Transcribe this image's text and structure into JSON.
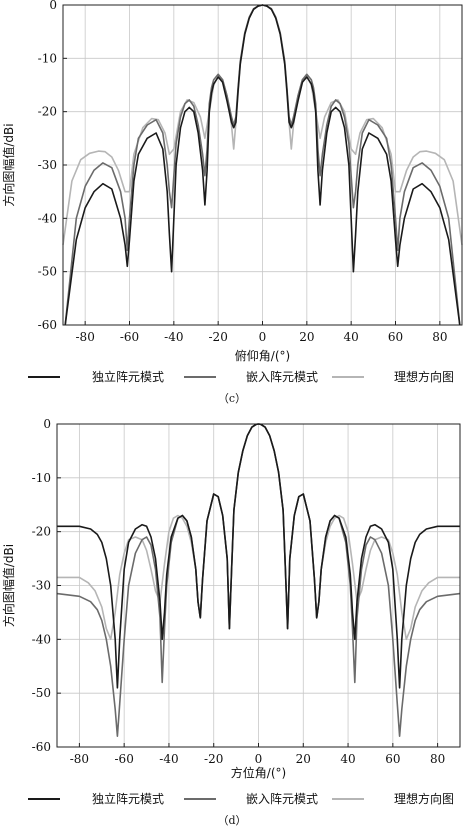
{
  "chart_data": [
    {
      "type": "line",
      "caption": "（c）",
      "xlabel": "俯仰角/(°)",
      "ylabel": "方向图幅值/dBi",
      "xlim": [
        -90,
        90
      ],
      "ylim": [
        -60,
        0
      ],
      "x_ticks": [
        -80,
        -60,
        -40,
        -20,
        0,
        20,
        40,
        60,
        80
      ],
      "y_ticks": [
        0,
        -10,
        -20,
        -30,
        -40,
        -50,
        -60
      ],
      "grid": true,
      "legend_position": "bottom",
      "colors": [
        "#1a1a1a",
        "#6b6b6b",
        "#b5b5b5"
      ],
      "series": [
        {
          "name": "独立阵元模式",
          "x": [
            -89,
            -84,
            -80,
            -76,
            -72,
            -68,
            -64,
            -62,
            -61,
            -60,
            -58,
            -56,
            -52,
            -48,
            -45,
            -43,
            -42,
            -41,
            -39,
            -37,
            -35,
            -33,
            -31,
            -29,
            -27,
            -26,
            -25,
            -24,
            -23,
            -22,
            -20,
            -18,
            -16,
            -14,
            -13,
            -12,
            -11,
            -10,
            -8,
            -6,
            -4,
            -2,
            0,
            2,
            4,
            6,
            8,
            10,
            11,
            12,
            13,
            14,
            16,
            18,
            20,
            22,
            23,
            24,
            25,
            26,
            27,
            29,
            31,
            33,
            35,
            37,
            39,
            41,
            42,
            43,
            45,
            48,
            52,
            56,
            58,
            60,
            61,
            62,
            64,
            68,
            72,
            76,
            80,
            84,
            89
          ],
          "y": [
            -60,
            -44,
            -38,
            -35,
            -33.5,
            -34.5,
            -40,
            -45,
            -49,
            -44,
            -33,
            -28,
            -25,
            -24,
            -27,
            -35,
            -43,
            -50,
            -30,
            -23,
            -20,
            -19.2,
            -20,
            -24,
            -31,
            -37.5,
            -31,
            -20,
            -16.5,
            -14.8,
            -13.5,
            -14.5,
            -18,
            -22,
            -23,
            -22,
            -16,
            -11,
            -5.5,
            -2.5,
            -0.8,
            -0.2,
            0,
            -0.2,
            -0.8,
            -2.5,
            -5.5,
            -11,
            -16,
            -22,
            -23,
            -22,
            -18,
            -14.5,
            -13.5,
            -14.8,
            -16.5,
            -20,
            -31,
            -37.5,
            -31,
            -24,
            -20,
            -19.2,
            -20,
            -23,
            -30,
            -50,
            -43,
            -35,
            -27,
            -24,
            -25,
            -28,
            -33,
            -44,
            -49,
            -45,
            -40,
            -34.5,
            -33.5,
            -35,
            -38,
            -44,
            -60
          ]
        },
        {
          "name": "嵌入阵元模式",
          "x": [
            -89,
            -84,
            -80,
            -76,
            -72,
            -68,
            -64,
            -62,
            -61,
            -60,
            -58,
            -56,
            -52,
            -48,
            -45,
            -43,
            -42,
            -41,
            -39,
            -37,
            -35,
            -33,
            -31,
            -29,
            -27,
            -26,
            -25,
            -24,
            -23,
            -22,
            -20,
            -18,
            -16,
            -14,
            -13,
            -12,
            -11,
            -10,
            -8,
            -6,
            -4,
            -2,
            0,
            2,
            4,
            6,
            8,
            10,
            11,
            12,
            13,
            14,
            16,
            18,
            20,
            22,
            23,
            24,
            25,
            26,
            27,
            29,
            31,
            33,
            35,
            37,
            39,
            41,
            42,
            43,
            45,
            48,
            52,
            56,
            58,
            60,
            61,
            62,
            64,
            68,
            72,
            76,
            80,
            84,
            89
          ],
          "y": [
            -60,
            -40,
            -34,
            -31,
            -29.6,
            -30.5,
            -35,
            -40,
            -46,
            -40,
            -30,
            -25,
            -22.5,
            -21.5,
            -24,
            -30,
            -35,
            -38,
            -26,
            -21,
            -18.5,
            -17.8,
            -19,
            -22.5,
            -28,
            -32,
            -27,
            -18.5,
            -15.5,
            -14,
            -13,
            -14,
            -17,
            -21,
            -22.5,
            -21,
            -15.5,
            -10.5,
            -5.2,
            -2.3,
            -0.7,
            -0.2,
            0,
            -0.2,
            -0.7,
            -2.3,
            -5.2,
            -10.5,
            -15.5,
            -21,
            -22.5,
            -21,
            -17,
            -14,
            -13,
            -14,
            -15.5,
            -18.5,
            -27,
            -32,
            -28,
            -22.5,
            -19,
            -17.8,
            -18.5,
            -21,
            -26,
            -38,
            -35,
            -30,
            -24,
            -21.5,
            -22.5,
            -25,
            -30,
            -40,
            -46,
            -40,
            -35,
            -30.5,
            -29.6,
            -31,
            -34,
            -40,
            -60
          ]
        },
        {
          "name": "理想方向图",
          "x": [
            -90,
            -86,
            -82,
            -78,
            -74,
            -71,
            -68,
            -65,
            -62,
            -60,
            -58,
            -54,
            -50,
            -47,
            -44,
            -42,
            -40,
            -37,
            -34,
            -31,
            -28,
            -26,
            -24,
            -22,
            -20,
            -18,
            -16,
            -14,
            -13,
            -12,
            -10,
            -8,
            -6,
            -4,
            -2,
            0,
            2,
            4,
            6,
            8,
            10,
            12,
            13,
            14,
            16,
            18,
            20,
            22,
            24,
            26,
            28,
            31,
            34,
            37,
            40,
            42,
            44,
            47,
            50,
            54,
            58,
            60,
            62,
            65,
            68,
            71,
            74,
            78,
            82,
            86,
            90
          ],
          "y": [
            -45,
            -33,
            -29,
            -27.8,
            -27.4,
            -27.5,
            -28.5,
            -31,
            -35,
            -35,
            -28,
            -23,
            -21.3,
            -21.5,
            -24,
            -28,
            -27,
            -20,
            -17.8,
            -18.3,
            -21,
            -25,
            -20,
            -15,
            -13.3,
            -14,
            -17,
            -22.5,
            -27,
            -22,
            -11,
            -5.3,
            -2.4,
            -0.8,
            -0.2,
            0,
            -0.2,
            -0.8,
            -2.4,
            -5.3,
            -11,
            -22,
            -27,
            -22.5,
            -17,
            -14,
            -13.3,
            -15,
            -20,
            -25,
            -21,
            -18.3,
            -17.8,
            -20,
            -27,
            -28,
            -24,
            -21.5,
            -21.3,
            -23,
            -28,
            -35,
            -35,
            -31,
            -28.5,
            -27.5,
            -27.4,
            -27.8,
            -29,
            -33,
            -45
          ]
        }
      ]
    },
    {
      "type": "line",
      "caption": "（d）",
      "xlabel": "方位角/(°)",
      "ylabel": "方向图幅值/dBi",
      "xlim": [
        -90,
        90
      ],
      "ylim": [
        -60,
        0
      ],
      "x_ticks": [
        -80,
        -60,
        -40,
        -20,
        0,
        20,
        40,
        60,
        80
      ],
      "y_ticks": [
        0,
        -10,
        -20,
        -30,
        -40,
        -50,
        -60
      ],
      "grid": true,
      "legend_position": "bottom",
      "colors": [
        "#1a1a1a",
        "#6b6b6b",
        "#b5b5b5"
      ],
      "series": [
        {
          "name": "独立阵元模式",
          "x": [
            -90,
            -80,
            -75,
            -72,
            -70,
            -68,
            -66,
            -64,
            -63,
            -62,
            -60,
            -58,
            -55,
            -52,
            -50,
            -48,
            -46,
            -44,
            -43,
            -42,
            -41,
            -39,
            -36,
            -34,
            -32,
            -30,
            -28,
            -27,
            -26,
            -25,
            -23,
            -20,
            -18,
            -16,
            -14,
            -13,
            -12,
            -11,
            -9,
            -7,
            -5,
            -3,
            -1,
            0,
            1,
            3,
            5,
            7,
            9,
            11,
            12,
            13,
            14,
            16,
            18,
            20,
            23,
            25,
            26,
            27,
            28,
            30,
            32,
            34,
            36,
            39,
            41,
            42,
            43,
            44,
            46,
            48,
            50,
            52,
            55,
            58,
            60,
            62,
            63,
            64,
            66,
            68,
            70,
            72,
            75,
            80,
            90
          ],
          "y": [
            -19,
            -19,
            -19.5,
            -20.5,
            -22,
            -25,
            -30,
            -40,
            -49,
            -40,
            -27,
            -22,
            -19.5,
            -18.7,
            -19,
            -21,
            -25,
            -33,
            -40,
            -35,
            -28,
            -21,
            -17.5,
            -17,
            -18,
            -21,
            -27,
            -33,
            -36,
            -29,
            -18,
            -13,
            -13.5,
            -17,
            -25,
            -38,
            -27,
            -16,
            -9,
            -5,
            -2.2,
            -0.6,
            -0.05,
            0,
            -0.05,
            -0.6,
            -2.2,
            -5,
            -9,
            -16,
            -27,
            -38,
            -25,
            -17,
            -13.5,
            -13,
            -18,
            -29,
            -36,
            -33,
            -27,
            -21,
            -18,
            -17,
            -17.5,
            -21,
            -28,
            -35,
            -40,
            -33,
            -25,
            -21,
            -19,
            -18.7,
            -19.5,
            -22,
            -27,
            -40,
            -49,
            -40,
            -30,
            -25,
            -22,
            -20.5,
            -19.5,
            -19,
            -19
          ]
        },
        {
          "name": "嵌入阵元模式",
          "x": [
            -90,
            -80,
            -75,
            -72,
            -70,
            -68,
            -66,
            -64,
            -63,
            -62,
            -60,
            -58,
            -55,
            -52,
            -50,
            -48,
            -46,
            -44,
            -43,
            -42,
            -41,
            -39,
            -36,
            -34,
            -32,
            -30,
            -28,
            -27,
            -26,
            -25,
            -23,
            -20,
            -18,
            -16,
            -14,
            -13,
            -12,
            -11,
            -9,
            -7,
            -5,
            -3,
            -1,
            0,
            1,
            3,
            5,
            7,
            9,
            11,
            12,
            13,
            14,
            16,
            18,
            20,
            23,
            25,
            26,
            27,
            28,
            30,
            32,
            34,
            36,
            39,
            41,
            42,
            43,
            44,
            46,
            48,
            50,
            52,
            55,
            58,
            60,
            62,
            63,
            64,
            66,
            68,
            70,
            72,
            75,
            80,
            90
          ],
          "y": [
            -31.5,
            -32,
            -33,
            -34.5,
            -36.5,
            -40,
            -45,
            -53,
            -58,
            -52,
            -40,
            -30,
            -24,
            -21.5,
            -21,
            -22.5,
            -27,
            -36,
            -48,
            -38,
            -30,
            -22,
            -17.5,
            -17,
            -18,
            -21,
            -27,
            -33,
            -36,
            -29,
            -18,
            -13,
            -13.5,
            -17,
            -25,
            -38,
            -27,
            -16,
            -9,
            -5,
            -2.2,
            -0.6,
            -0.05,
            0,
            -0.05,
            -0.6,
            -2.2,
            -5,
            -9,
            -16,
            -27,
            -38,
            -25,
            -17,
            -13.5,
            -13,
            -18,
            -29,
            -36,
            -33,
            -27,
            -21,
            -18,
            -17,
            -17.5,
            -22,
            -30,
            -38,
            -48,
            -36,
            -27,
            -22.5,
            -21,
            -21.5,
            -24,
            -30,
            -40,
            -52,
            -58,
            -53,
            -45,
            -40,
            -36.5,
            -34.5,
            -33,
            -32,
            -31.5
          ]
        },
        {
          "name": "理想方向图",
          "x": [
            -90,
            -80,
            -76,
            -73,
            -70,
            -68,
            -66,
            -64,
            -62,
            -60,
            -58,
            -55,
            -52,
            -50,
            -48,
            -46,
            -44,
            -42,
            -40,
            -38,
            -36,
            -34,
            -32,
            -30,
            -28,
            -27,
            -26,
            -25,
            -23,
            -20,
            -18,
            -16,
            -14,
            -13,
            -12,
            -11,
            -9,
            -7,
            -5,
            -3,
            -1,
            0,
            1,
            3,
            5,
            7,
            9,
            11,
            12,
            13,
            14,
            16,
            18,
            20,
            23,
            25,
            26,
            27,
            28,
            30,
            32,
            34,
            36,
            38,
            40,
            42,
            44,
            46,
            48,
            50,
            52,
            55,
            58,
            60,
            62,
            64,
            66,
            68,
            70,
            73,
            76,
            80,
            90
          ],
          "y": [
            -28.5,
            -28.5,
            -29.5,
            -31,
            -34,
            -38,
            -40,
            -35,
            -28,
            -24,
            -21.5,
            -21,
            -21.5,
            -23.5,
            -27,
            -31,
            -33,
            -26,
            -20,
            -17.5,
            -17,
            -17.5,
            -19,
            -22,
            -27,
            -33,
            -36,
            -29,
            -18,
            -13,
            -13.5,
            -17,
            -25,
            -38,
            -27,
            -16,
            -9,
            -5,
            -2.2,
            -0.6,
            -0.05,
            0,
            -0.05,
            -0.6,
            -2.2,
            -5,
            -9,
            -16,
            -27,
            -38,
            -25,
            -17,
            -13.5,
            -13,
            -18,
            -29,
            -36,
            -33,
            -27,
            -22,
            -19,
            -17.5,
            -17,
            -17.5,
            -20,
            -26,
            -33,
            -31,
            -27,
            -23.5,
            -21.5,
            -21,
            -21.5,
            -24,
            -28,
            -35,
            -40,
            -38,
            -34,
            -31,
            -29.5,
            -28.5,
            -28.5
          ]
        }
      ]
    }
  ]
}
